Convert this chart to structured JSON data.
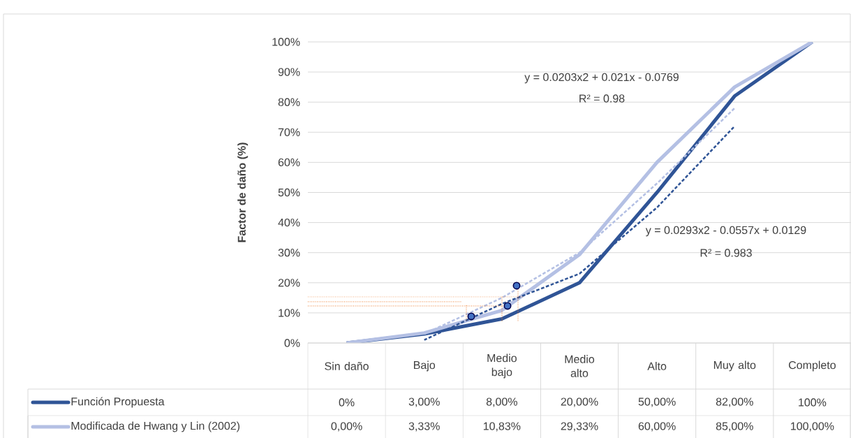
{
  "chart_data": {
    "type": "line",
    "ylabel": "Factor de daño (%)",
    "categories": [
      "Sin daño",
      "Bajo",
      "Medio bajo",
      "Medio alto",
      "Alto",
      "Muy alto",
      "Completo"
    ],
    "series": [
      {
        "name": "Función Propuesta",
        "color": "#2f5496",
        "values": [
          0,
          3,
          8,
          20,
          50,
          82,
          100
        ],
        "value_labels": [
          "0%",
          "3,00%",
          "8,00%",
          "20,00%",
          "50,00%",
          "82,00%",
          "100%"
        ]
      },
      {
        "name": "Modificada de Hwang y Lin (2002)",
        "color": "#b4c0e4",
        "values": [
          0,
          3.33,
          10.83,
          29.33,
          60,
          85,
          100
        ],
        "value_labels": [
          "0,00%",
          "3,33%",
          "10,83%",
          "29,33%",
          "60,00%",
          "85,00%",
          "100,00%"
        ]
      },
      {
        "type": "line",
        "line_style": "dashed",
        "color": "#2f5496",
        "values": [
          null,
          1,
          13,
          23,
          45,
          72,
          null
        ]
      },
      {
        "type": "line",
        "line_style": "dashed",
        "color": "#b4c0e4",
        "values": [
          null,
          3,
          15,
          30,
          53,
          78,
          null
        ]
      }
    ],
    "ylim": [
      0,
      100
    ],
    "yticks": [
      {
        "value": 0,
        "label": "0%"
      },
      {
        "value": 10,
        "label": "10%"
      },
      {
        "value": 20,
        "label": "20%"
      },
      {
        "value": 30,
        "label": "30%"
      },
      {
        "value": 40,
        "label": "40%"
      },
      {
        "value": 50,
        "label": "50%"
      },
      {
        "value": 60,
        "label": "60%"
      },
      {
        "value": 70,
        "label": "70%"
      },
      {
        "value": 80,
        "label": "80%"
      },
      {
        "value": 90,
        "label": "90%"
      },
      {
        "value": 100,
        "label": "100%"
      }
    ],
    "ref_lines": [
      {
        "axis": "y",
        "value": 15.3,
        "color": "#ed7d31",
        "line_style": "dotted"
      },
      {
        "axis": "y",
        "value": 13.7,
        "color": "#ed7d31",
        "line_style": "dotted"
      },
      {
        "axis": "y",
        "value": 12.3,
        "color": "#ed7d31",
        "line_style": "dotted"
      }
    ],
    "grid": "y",
    "legend": "bottom",
    "annotations": [
      "y = 0.0203x2 + 0.021x - 0.0769",
      "R² = 0.98",
      "y = 0.0293x2 - 0.0557x + 0.0129",
      "R² = 0.983"
    ]
  }
}
